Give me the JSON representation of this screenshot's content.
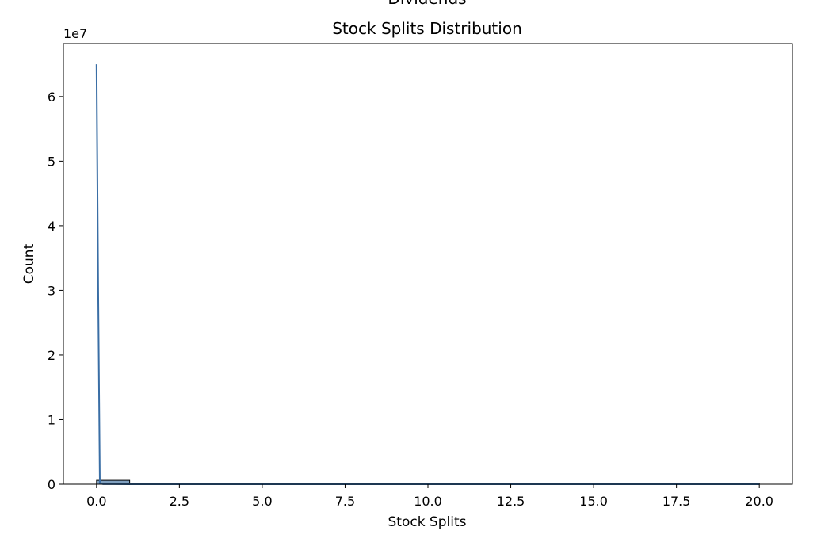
{
  "header_cut_text": "Dividends",
  "chart_data": {
    "type": "histogram",
    "title": "Stock Splits Distribution",
    "xlabel": "Stock Splits",
    "ylabel": "Count",
    "y_offset_label": "1e7",
    "xlim": [
      -1.0,
      21.0
    ],
    "ylim": [
      0,
      68200000
    ],
    "x_ticks": [
      0.0,
      2.5,
      5.0,
      7.5,
      10.0,
      12.5,
      15.0,
      17.5,
      20.0
    ],
    "x_tick_labels": [
      "0.0",
      "2.5",
      "5.0",
      "7.5",
      "10.0",
      "12.5",
      "15.0",
      "17.5",
      "20.0"
    ],
    "y_ticks": [
      0,
      10000000,
      20000000,
      30000000,
      40000000,
      50000000,
      60000000
    ],
    "y_tick_labels": [
      "0",
      "1",
      "2",
      "3",
      "4",
      "5",
      "6"
    ],
    "bin_edges": [
      0,
      1,
      2,
      3,
      4,
      5,
      6,
      7,
      8,
      9,
      10,
      11,
      12,
      13,
      14,
      15,
      16,
      17,
      18,
      19,
      20
    ],
    "counts": [
      600000,
      1000,
      500,
      300,
      200,
      150,
      100,
      80,
      60,
      50,
      40,
      30,
      25,
      20,
      15,
      12,
      10,
      8,
      6,
      5
    ],
    "kde": {
      "x": [
        0.0,
        0.05,
        0.1,
        0.2,
        0.5,
        1.0,
        2.0,
        5.0,
        10.0,
        15.0,
        20.0
      ],
      "y": [
        65000000,
        30000000,
        120000,
        20000,
        8000,
        5000,
        3000,
        1500,
        800,
        400,
        100
      ]
    },
    "grid": false,
    "colors": {
      "bar_fill": "#6a8fb4",
      "bar_edge": "#000000",
      "kde_line": "#3a6ea5"
    }
  }
}
